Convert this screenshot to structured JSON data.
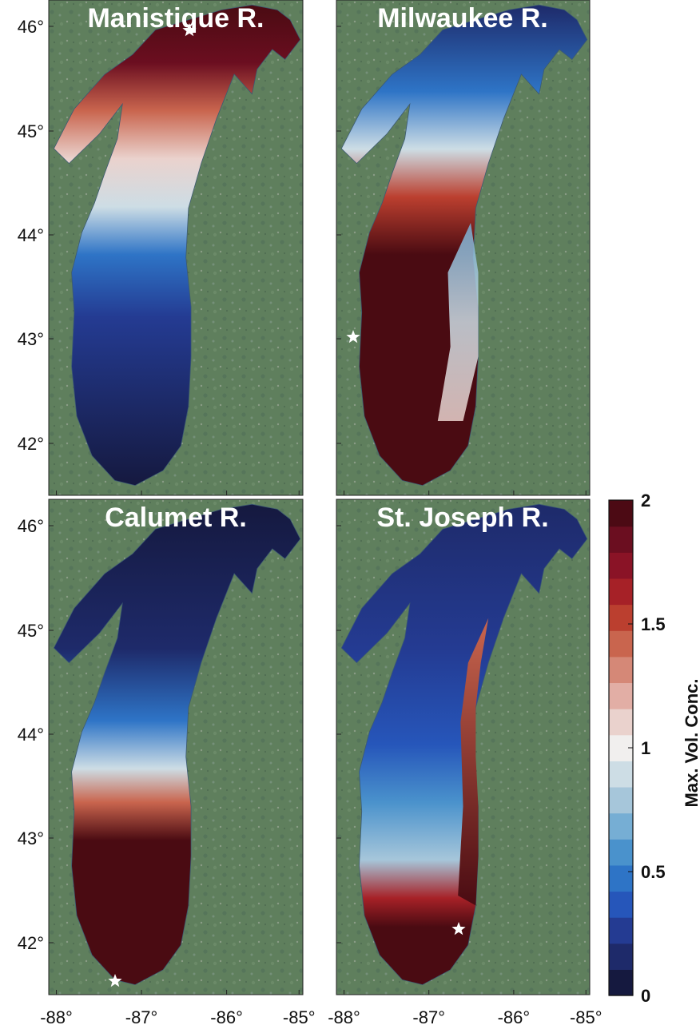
{
  "panels": [
    {
      "title": "Manistique R.",
      "source_label": "star"
    },
    {
      "title": "Milwaukee R.",
      "source_label": "star"
    },
    {
      "title": "Calumet R.",
      "source_label": "star"
    },
    {
      "title": "St. Joseph R.",
      "source_label": "star"
    }
  ],
  "axes": {
    "lat_ticks": [
      "46°",
      "45°",
      "44°",
      "43°",
      "42°"
    ],
    "lon_ticks": [
      "-88°",
      "-87°",
      "-86°",
      "-85°"
    ]
  },
  "colorbar": {
    "title": "Max. Vol. Conc.",
    "tick_labels": [
      "2",
      "1.5",
      "1",
      "0.5",
      "0"
    ],
    "range": [
      0,
      2
    ],
    "colors": [
      "#15193f",
      "#1e2a6a",
      "#243b92",
      "#2656ba",
      "#2e74c6",
      "#4a92cc",
      "#76aed4",
      "#a6c6da",
      "#cddde5",
      "#f1efee",
      "#ead2cd",
      "#e2aea5",
      "#d58877",
      "#c9654e",
      "#bb3f2f",
      "#a62127",
      "#8a1326",
      "#6b0e20",
      "#4c0a14"
    ]
  },
  "colors": {
    "land": "#5f7f5d",
    "low": "#1a2455",
    "high": "#4a0b12",
    "neutral": "#eef0f0"
  }
}
